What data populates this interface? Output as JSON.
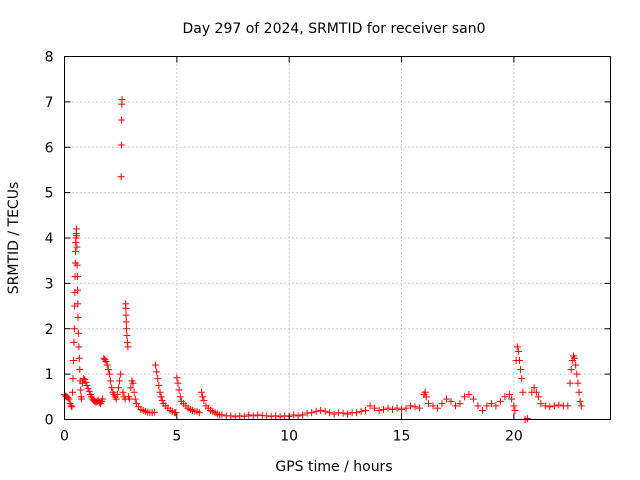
{
  "chart_data": {
    "type": "scatter",
    "title": "Day 297 of 2024, SRMTID for receiver san0",
    "xlabel": "GPS time / hours",
    "ylabel": "SRMTID / TECUs",
    "xlim": [
      0,
      24.3
    ],
    "ylim": [
      0,
      8
    ],
    "xticks": [
      0,
      5,
      10,
      15,
      20
    ],
    "yticks": [
      0,
      1,
      2,
      3,
      4,
      5,
      6,
      7,
      8
    ],
    "grid": true,
    "marker": "plus",
    "color": "#ff0000",
    "series": [
      {
        "name": "SRMTID",
        "points": [
          [
            0.0,
            0.55
          ],
          [
            0.05,
            0.52
          ],
          [
            0.1,
            0.5
          ],
          [
            0.15,
            0.48
          ],
          [
            0.2,
            0.45
          ],
          [
            0.25,
            0.35
          ],
          [
            0.3,
            0.3
          ],
          [
            0.33,
            0.28
          ],
          [
            0.36,
            0.6
          ],
          [
            0.38,
            0.9
          ],
          [
            0.4,
            1.3
          ],
          [
            0.42,
            1.7
          ],
          [
            0.44,
            2.0
          ],
          [
            0.45,
            2.5
          ],
          [
            0.46,
            2.8
          ],
          [
            0.47,
            3.15
          ],
          [
            0.48,
            3.45
          ],
          [
            0.49,
            3.7
          ],
          [
            0.5,
            3.9
          ],
          [
            0.51,
            4.0
          ],
          [
            0.52,
            4.1
          ],
          [
            0.53,
            4.2
          ],
          [
            0.54,
            4.05
          ],
          [
            0.55,
            3.8
          ],
          [
            0.56,
            3.4
          ],
          [
            0.57,
            3.15
          ],
          [
            0.58,
            2.85
          ],
          [
            0.59,
            2.55
          ],
          [
            0.6,
            2.25
          ],
          [
            0.62,
            1.9
          ],
          [
            0.64,
            1.6
          ],
          [
            0.66,
            1.35
          ],
          [
            0.68,
            1.1
          ],
          [
            0.7,
            0.85
          ],
          [
            0.72,
            0.65
          ],
          [
            0.74,
            0.5
          ],
          [
            0.76,
            0.45
          ],
          [
            0.8,
            0.8
          ],
          [
            0.85,
            0.9
          ],
          [
            0.9,
            0.88
          ],
          [
            0.95,
            0.82
          ],
          [
            1.0,
            0.75
          ],
          [
            1.05,
            0.68
          ],
          [
            1.1,
            0.62
          ],
          [
            1.15,
            0.55
          ],
          [
            1.2,
            0.5
          ],
          [
            1.25,
            0.45
          ],
          [
            1.3,
            0.42
          ],
          [
            1.35,
            0.4
          ],
          [
            1.4,
            0.38
          ],
          [
            1.45,
            0.4
          ],
          [
            1.5,
            0.42
          ],
          [
            1.55,
            0.38
          ],
          [
            1.6,
            0.35
          ],
          [
            1.65,
            0.4
          ],
          [
            1.7,
            0.45
          ],
          [
            1.75,
            1.35
          ],
          [
            1.8,
            1.32
          ],
          [
            1.85,
            1.28
          ],
          [
            1.9,
            1.2
          ],
          [
            1.95,
            1.1
          ],
          [
            2.0,
            1.0
          ],
          [
            2.05,
            0.85
          ],
          [
            2.1,
            0.7
          ],
          [
            2.15,
            0.6
          ],
          [
            2.2,
            0.55
          ],
          [
            2.25,
            0.5
          ],
          [
            2.3,
            0.45
          ],
          [
            2.35,
            0.55
          ],
          [
            2.4,
            0.7
          ],
          [
            2.45,
            0.85
          ],
          [
            2.5,
            1.0
          ],
          [
            2.52,
            5.35
          ],
          [
            2.53,
            6.05
          ],
          [
            2.54,
            6.6
          ],
          [
            2.55,
            6.95
          ],
          [
            2.56,
            7.05
          ],
          [
            2.6,
            0.6
          ],
          [
            2.65,
            0.5
          ],
          [
            2.7,
            0.45
          ],
          [
            2.72,
            2.55
          ],
          [
            2.73,
            2.45
          ],
          [
            2.74,
            2.3
          ],
          [
            2.75,
            2.15
          ],
          [
            2.76,
            2.0
          ],
          [
            2.78,
            1.85
          ],
          [
            2.8,
            1.7
          ],
          [
            2.82,
            1.6
          ],
          [
            2.85,
            0.5
          ],
          [
            2.9,
            0.45
          ],
          [
            2.95,
            0.7
          ],
          [
            3.0,
            0.85
          ],
          [
            3.05,
            0.8
          ],
          [
            3.1,
            0.6
          ],
          [
            3.15,
            0.45
          ],
          [
            3.2,
            0.35
          ],
          [
            3.3,
            0.28
          ],
          [
            3.4,
            0.22
          ],
          [
            3.5,
            0.2
          ],
          [
            3.6,
            0.18
          ],
          [
            3.7,
            0.16
          ],
          [
            3.8,
            0.15
          ],
          [
            3.9,
            0.15
          ],
          [
            4.0,
            0.16
          ],
          [
            4.05,
            1.2
          ],
          [
            4.1,
            1.05
          ],
          [
            4.15,
            0.9
          ],
          [
            4.2,
            0.75
          ],
          [
            4.25,
            0.6
          ],
          [
            4.3,
            0.5
          ],
          [
            4.35,
            0.42
          ],
          [
            4.4,
            0.35
          ],
          [
            4.5,
            0.3
          ],
          [
            4.6,
            0.25
          ],
          [
            4.7,
            0.2
          ],
          [
            4.8,
            0.18
          ],
          [
            4.9,
            0.15
          ],
          [
            4.95,
            0.15
          ],
          [
            5.0,
            0.92
          ],
          [
            5.05,
            0.8
          ],
          [
            5.1,
            0.65
          ],
          [
            5.15,
            0.5
          ],
          [
            5.2,
            0.4
          ],
          [
            5.3,
            0.35
          ],
          [
            5.4,
            0.3
          ],
          [
            5.5,
            0.25
          ],
          [
            5.6,
            0.22
          ],
          [
            5.7,
            0.2
          ],
          [
            5.8,
            0.18
          ],
          [
            5.9,
            0.18
          ],
          [
            6.0,
            0.15
          ],
          [
            6.1,
            0.6
          ],
          [
            6.15,
            0.5
          ],
          [
            6.2,
            0.42
          ],
          [
            6.3,
            0.3
          ],
          [
            6.4,
            0.25
          ],
          [
            6.5,
            0.2
          ],
          [
            6.6,
            0.18
          ],
          [
            6.7,
            0.15
          ],
          [
            6.8,
            0.12
          ],
          [
            6.9,
            0.1
          ],
          [
            7.0,
            0.1
          ],
          [
            7.2,
            0.08
          ],
          [
            7.4,
            0.08
          ],
          [
            7.6,
            0.06
          ],
          [
            7.8,
            0.08
          ],
          [
            8.0,
            0.07
          ],
          [
            8.2,
            0.1
          ],
          [
            8.4,
            0.08
          ],
          [
            8.6,
            0.1
          ],
          [
            8.8,
            0.09
          ],
          [
            9.0,
            0.08
          ],
          [
            9.2,
            0.07
          ],
          [
            9.4,
            0.08
          ],
          [
            9.6,
            0.06
          ],
          [
            9.8,
            0.08
          ],
          [
            10.0,
            0.07
          ],
          [
            10.2,
            0.1
          ],
          [
            10.4,
            0.08
          ],
          [
            10.6,
            0.1
          ],
          [
            10.8,
            0.14
          ],
          [
            11.0,
            0.15
          ],
          [
            11.2,
            0.18
          ],
          [
            11.4,
            0.2
          ],
          [
            11.6,
            0.18
          ],
          [
            11.8,
            0.15
          ],
          [
            12.0,
            0.12
          ],
          [
            12.2,
            0.15
          ],
          [
            12.4,
            0.14
          ],
          [
            12.6,
            0.12
          ],
          [
            12.8,
            0.15
          ],
          [
            13.0,
            0.15
          ],
          [
            13.2,
            0.18
          ],
          [
            13.4,
            0.2
          ],
          [
            13.6,
            0.3
          ],
          [
            13.8,
            0.25
          ],
          [
            14.0,
            0.2
          ],
          [
            14.2,
            0.22
          ],
          [
            14.4,
            0.25
          ],
          [
            14.6,
            0.22
          ],
          [
            14.8,
            0.25
          ],
          [
            15.0,
            0.22
          ],
          [
            15.2,
            0.25
          ],
          [
            15.4,
            0.3
          ],
          [
            15.6,
            0.28
          ],
          [
            15.8,
            0.25
          ],
          [
            16.0,
            0.55
          ],
          [
            16.05,
            0.6
          ],
          [
            16.1,
            0.5
          ],
          [
            16.2,
            0.35
          ],
          [
            16.4,
            0.3
          ],
          [
            16.6,
            0.25
          ],
          [
            16.8,
            0.35
          ],
          [
            17.0,
            0.45
          ],
          [
            17.2,
            0.4
          ],
          [
            17.4,
            0.3
          ],
          [
            17.6,
            0.35
          ],
          [
            17.8,
            0.5
          ],
          [
            18.0,
            0.55
          ],
          [
            18.2,
            0.45
          ],
          [
            18.4,
            0.3
          ],
          [
            18.6,
            0.2
          ],
          [
            18.8,
            0.3
          ],
          [
            19.0,
            0.35
          ],
          [
            19.2,
            0.3
          ],
          [
            19.4,
            0.4
          ],
          [
            19.6,
            0.5
          ],
          [
            19.8,
            0.55
          ],
          [
            19.9,
            0.45
          ],
          [
            20.0,
            0.3
          ],
          [
            20.05,
            0.2
          ],
          [
            20.1,
            1.3
          ],
          [
            20.15,
            1.6
          ],
          [
            20.2,
            1.5
          ],
          [
            20.25,
            1.3
          ],
          [
            20.3,
            1.1
          ],
          [
            20.35,
            0.9
          ],
          [
            20.4,
            0.6
          ],
          [
            20.5,
            0.0
          ],
          [
            20.6,
            0.02
          ],
          [
            20.8,
            0.6
          ],
          [
            20.9,
            0.7
          ],
          [
            21.0,
            0.6
          ],
          [
            21.1,
            0.5
          ],
          [
            21.2,
            0.35
          ],
          [
            21.4,
            0.3
          ],
          [
            21.6,
            0.28
          ],
          [
            21.8,
            0.3
          ],
          [
            22.0,
            0.32
          ],
          [
            22.2,
            0.3
          ],
          [
            22.4,
            0.3
          ],
          [
            22.5,
            0.8
          ],
          [
            22.55,
            1.1
          ],
          [
            22.6,
            1.3
          ],
          [
            22.65,
            1.4
          ],
          [
            22.7,
            1.35
          ],
          [
            22.75,
            1.2
          ],
          [
            22.8,
            1.0
          ],
          [
            22.85,
            0.8
          ],
          [
            22.9,
            0.6
          ],
          [
            22.95,
            0.4
          ],
          [
            23.0,
            0.3
          ]
        ]
      }
    ]
  }
}
